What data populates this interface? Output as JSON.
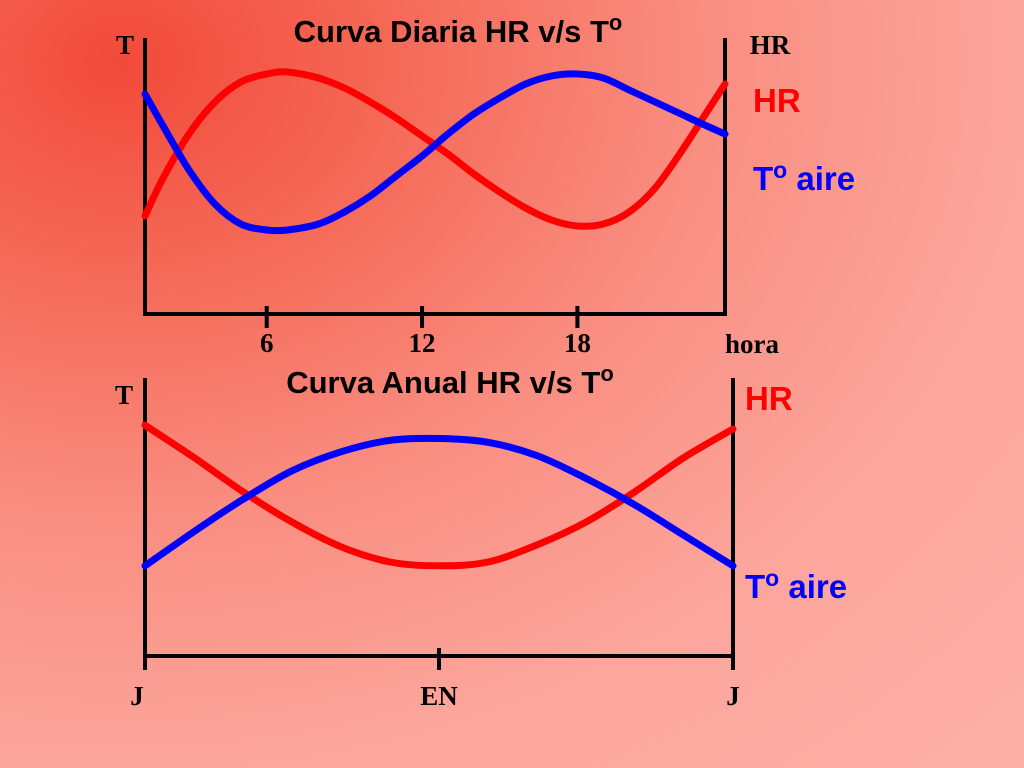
{
  "chart_data": [
    {
      "type": "line",
      "title": "Curva Diaria HR v/s To",
      "y_left_label": "T",
      "y_right_label": "HR",
      "xlabel": "hora",
      "x_ticks": [
        6,
        12,
        18
      ],
      "xlim": [
        1.3,
        23.7
      ],
      "ylim": [
        0,
        1
      ],
      "grid": false,
      "legend_placement": "right",
      "series": [
        {
          "name": "HR",
          "color": "#ff0000",
          "x": [
            1.3,
            2,
            3,
            4,
            5,
            6,
            6.8,
            8,
            9,
            10,
            11,
            12,
            13,
            14,
            15,
            16,
            17,
            18,
            19,
            20,
            21,
            22,
            23,
            23.7
          ],
          "y": [
            0.27,
            0.46,
            0.68,
            0.84,
            0.94,
            0.98,
            0.99,
            0.96,
            0.91,
            0.84,
            0.76,
            0.67,
            0.58,
            0.48,
            0.39,
            0.31,
            0.25,
            0.22,
            0.23,
            0.29,
            0.41,
            0.59,
            0.79,
            0.93
          ]
        },
        {
          "name": "To aire",
          "color": "#0000ff",
          "x": [
            1.3,
            2,
            3,
            4,
            5,
            6,
            6.8,
            8,
            9,
            10,
            11,
            12,
            13,
            14,
            15,
            16,
            17,
            18,
            19,
            20,
            21,
            22,
            23,
            23.7
          ],
          "y": [
            0.88,
            0.72,
            0.5,
            0.33,
            0.23,
            0.2,
            0.2,
            0.23,
            0.29,
            0.37,
            0.47,
            0.57,
            0.68,
            0.78,
            0.86,
            0.93,
            0.97,
            0.98,
            0.96,
            0.9,
            0.84,
            0.78,
            0.72,
            0.68
          ]
        }
      ],
      "labels": {
        "hr": "HR",
        "temp": "To aire"
      }
    },
    {
      "type": "line",
      "title": "Curva Anual  HR v/s To",
      "y_left_label": "T",
      "x_ticks": [
        "J",
        "EN",
        "J"
      ],
      "xlim": [
        0,
        12
      ],
      "ylim": [
        0,
        1
      ],
      "grid": false,
      "legend_placement": "right",
      "series": [
        {
          "name": "HR",
          "color": "#ff0000",
          "x": [
            0,
            1,
            2,
            3,
            4,
            5,
            6,
            7,
            8,
            9,
            10,
            11,
            12
          ],
          "y": [
            0.92,
            0.75,
            0.57,
            0.41,
            0.28,
            0.2,
            0.18,
            0.2,
            0.29,
            0.41,
            0.57,
            0.75,
            0.9
          ]
        },
        {
          "name": "To aire",
          "color": "#0000ff",
          "x": [
            0,
            1,
            2,
            3,
            4,
            5,
            6,
            7,
            8,
            9,
            10,
            11,
            12
          ],
          "y": [
            0.18,
            0.36,
            0.53,
            0.68,
            0.78,
            0.84,
            0.85,
            0.83,
            0.76,
            0.64,
            0.5,
            0.34,
            0.18
          ]
        }
      ],
      "labels": {
        "hr": "HR",
        "temp": "To aire"
      }
    }
  ]
}
